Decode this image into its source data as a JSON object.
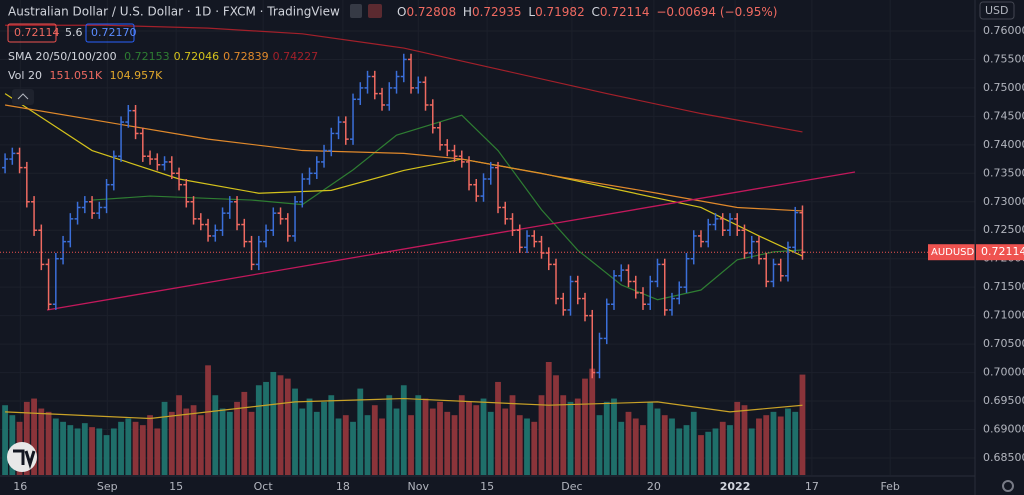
{
  "chart_data": {
    "type": "ohlc",
    "title": "Australian Dollar / U.S. Dollar · 1D · FXCM · TradingView",
    "o_label": "O",
    "h_label": "H",
    "l_label": "L",
    "c_label": "C",
    "change": "−0.00694 (−0.95%)",
    "spread": "5.6",
    "buy": "0.72170",
    "sma_label": "SMA 20/50/100/200",
    "vol_label": "Vol 20",
    "volume_label": "151.051K",
    "volume_ma_label": "104.957K",
    "currency": "USD",
    "symbol": "AUDUSD",
    "up_color": "#3b6fd9",
    "down_color": "#ef6a61",
    "volume_up_color": "#1f6f6a",
    "volume_down_color": "#8a343a",
    "volume_ma_color": "#c9a227",
    "grid": true,
    "xlim": [
      -0.7,
      133.8
    ],
    "ylim": [
      0.68201,
      0.76544
    ],
    "xticks": [
      {
        "value": 2.1,
        "label": "16"
      },
      {
        "value": 14.1,
        "label": "Sep"
      },
      {
        "value": 23.6,
        "label": "15"
      },
      {
        "value": 35.6,
        "label": "Oct"
      },
      {
        "value": 46.6,
        "label": "18"
      },
      {
        "value": 57,
        "label": "Nov"
      },
      {
        "value": 66.5,
        "label": "15"
      },
      {
        "value": 78.2,
        "label": "Dec"
      },
      {
        "value": 89.5,
        "label": "20"
      },
      {
        "value": 100.7,
        "label": "2022"
      },
      {
        "value": 111.3,
        "label": "17"
      },
      {
        "value": 122.1,
        "label": "Feb"
      }
    ],
    "yticks": [
      {
        "value": 0.685,
        "label": "0.68500"
      },
      {
        "value": 0.69,
        "label": "0.69000"
      },
      {
        "value": 0.695,
        "label": "0.69500"
      },
      {
        "value": 0.7,
        "label": "0.70000"
      },
      {
        "value": 0.705,
        "label": "0.70500"
      },
      {
        "value": 0.71,
        "label": "0.71000"
      },
      {
        "value": 0.715,
        "label": "0.71500"
      },
      {
        "value": 0.72,
        "label": "0.72000"
      },
      {
        "value": 0.725,
        "label": "0.72500"
      },
      {
        "value": 0.73,
        "label": "0.73000"
      },
      {
        "value": 0.735,
        "label": "0.73500"
      },
      {
        "value": 0.74,
        "label": "0.74000"
      },
      {
        "value": 0.745,
        "label": "0.74500"
      },
      {
        "value": 0.75,
        "label": "0.75000"
      },
      {
        "value": 0.755,
        "label": "0.75500"
      },
      {
        "value": 0.76,
        "label": "0.76000"
      }
    ],
    "open": [
      0.736,
      0.7375,
      0.7385,
      0.736,
      0.73,
      0.725,
      0.719,
      0.712,
      0.72,
      0.723,
      0.727,
      0.729,
      0.73,
      0.728,
      0.729,
      0.733,
      0.738,
      0.744,
      0.746,
      0.742,
      0.738,
      0.7375,
      0.7365,
      0.737,
      0.735,
      0.733,
      0.73,
      0.727,
      0.726,
      0.724,
      0.725,
      0.728,
      0.73,
      0.726,
      0.723,
      0.719,
      0.723,
      0.725,
      0.728,
      0.727,
      0.724,
      0.73,
      0.734,
      0.735,
      0.737,
      0.739,
      0.742,
      0.744,
      0.741,
      0.748,
      0.75,
      0.752,
      0.749,
      0.747,
      0.75,
      0.752,
      0.755,
      0.75,
      0.751,
      0.747,
      0.743,
      0.74,
      0.739,
      0.738,
      0.737,
      0.733,
      0.731,
      0.734,
      0.736,
      0.729,
      0.727,
      0.725,
      0.722,
      0.724,
      0.723,
      0.721,
      0.719,
      0.713,
      0.711,
      0.716,
      0.713,
      0.71,
      0.7,
      0.706,
      0.712,
      0.717,
      0.718,
      0.716,
      0.714,
      0.712,
      0.716,
      0.719,
      0.711,
      0.713,
      0.715,
      0.72,
      0.724,
      0.723,
      0.726,
      0.727,
      0.725,
      0.727,
      0.725,
      0.721,
      0.723,
      0.72,
      0.716,
      0.719,
      0.717,
      0.722,
      0.72808
    ],
    "high": [
      0.7385,
      0.7395,
      0.7395,
      0.737,
      0.731,
      0.726,
      0.72,
      0.721,
      0.724,
      0.728,
      0.73,
      0.731,
      0.731,
      0.73,
      0.734,
      0.739,
      0.745,
      0.747,
      0.747,
      0.743,
      0.739,
      0.7385,
      0.738,
      0.738,
      0.736,
      0.734,
      0.731,
      0.728,
      0.727,
      0.726,
      0.729,
      0.731,
      0.731,
      0.727,
      0.724,
      0.724,
      0.726,
      0.729,
      0.729,
      0.728,
      0.731,
      0.735,
      0.736,
      0.738,
      0.74,
      0.743,
      0.745,
      0.745,
      0.749,
      0.751,
      0.753,
      0.753,
      0.75,
      0.751,
      0.753,
      0.756,
      0.756,
      0.752,
      0.752,
      0.748,
      0.744,
      0.741,
      0.74,
      0.739,
      0.738,
      0.734,
      0.735,
      0.737,
      0.737,
      0.73,
      0.728,
      0.726,
      0.725,
      0.725,
      0.724,
      0.722,
      0.72,
      0.714,
      0.717,
      0.717,
      0.714,
      0.711,
      0.707,
      0.713,
      0.718,
      0.719,
      0.719,
      0.717,
      0.715,
      0.717,
      0.72,
      0.72,
      0.714,
      0.716,
      0.721,
      0.725,
      0.725,
      0.727,
      0.728,
      0.728,
      0.728,
      0.728,
      0.726,
      0.724,
      0.724,
      0.721,
      0.72,
      0.72,
      0.723,
      0.7291,
      0.72935
    ],
    "low": [
      0.735,
      0.7365,
      0.735,
      0.729,
      0.724,
      0.718,
      0.711,
      0.711,
      0.719,
      0.722,
      0.726,
      0.728,
      0.727,
      0.727,
      0.728,
      0.732,
      0.737,
      0.743,
      0.741,
      0.737,
      0.7365,
      0.7355,
      0.7355,
      0.734,
      0.732,
      0.729,
      0.726,
      0.725,
      0.723,
      0.723,
      0.724,
      0.727,
      0.725,
      0.722,
      0.718,
      0.718,
      0.722,
      0.724,
      0.726,
      0.723,
      0.723,
      0.729,
      0.733,
      0.734,
      0.736,
      0.738,
      0.741,
      0.74,
      0.74,
      0.747,
      0.749,
      0.748,
      0.746,
      0.746,
      0.749,
      0.751,
      0.749,
      0.749,
      0.746,
      0.742,
      0.739,
      0.738,
      0.737,
      0.736,
      0.732,
      0.73,
      0.73,
      0.733,
      0.728,
      0.726,
      0.724,
      0.721,
      0.721,
      0.722,
      0.72,
      0.718,
      0.712,
      0.71,
      0.71,
      0.712,
      0.709,
      0.699,
      0.699,
      0.705,
      0.711,
      0.716,
      0.715,
      0.713,
      0.711,
      0.711,
      0.715,
      0.71,
      0.71,
      0.712,
      0.714,
      0.719,
      0.722,
      0.722,
      0.725,
      0.724,
      0.724,
      0.724,
      0.72,
      0.72,
      0.719,
      0.715,
      0.715,
      0.716,
      0.716,
      0.721,
      0.71982
    ],
    "close": [
      0.7375,
      0.7385,
      0.736,
      0.73,
      0.725,
      0.719,
      0.712,
      0.72,
      0.723,
      0.727,
      0.729,
      0.73,
      0.728,
      0.729,
      0.733,
      0.738,
      0.744,
      0.746,
      0.742,
      0.738,
      0.7375,
      0.7365,
      0.737,
      0.735,
      0.733,
      0.73,
      0.727,
      0.726,
      0.724,
      0.725,
      0.728,
      0.73,
      0.726,
      0.723,
      0.719,
      0.723,
      0.725,
      0.728,
      0.727,
      0.724,
      0.73,
      0.734,
      0.735,
      0.737,
      0.739,
      0.742,
      0.744,
      0.741,
      0.748,
      0.75,
      0.752,
      0.749,
      0.747,
      0.75,
      0.752,
      0.755,
      0.75,
      0.751,
      0.747,
      0.743,
      0.74,
      0.739,
      0.738,
      0.737,
      0.733,
      0.731,
      0.734,
      0.736,
      0.729,
      0.727,
      0.725,
      0.722,
      0.724,
      0.723,
      0.721,
      0.719,
      0.713,
      0.711,
      0.716,
      0.713,
      0.71,
      0.7,
      0.706,
      0.712,
      0.717,
      0.718,
      0.716,
      0.714,
      0.712,
      0.716,
      0.719,
      0.711,
      0.713,
      0.715,
      0.72,
      0.724,
      0.723,
      0.726,
      0.727,
      0.725,
      0.727,
      0.725,
      0.721,
      0.723,
      0.72,
      0.716,
      0.719,
      0.717,
      0.722,
      0.7281,
      0.72114
    ],
    "volume": [
      105000,
      90000,
      80000,
      110000,
      115000,
      100000,
      95000,
      85000,
      80000,
      75000,
      70000,
      78000,
      72000,
      70000,
      60000,
      70000,
      80000,
      85000,
      80000,
      75000,
      90000,
      70000,
      110000,
      95000,
      120000,
      100000,
      105000,
      90000,
      165000,
      120000,
      100000,
      95000,
      110000,
      125000,
      95000,
      135000,
      140000,
      155000,
      150000,
      145000,
      130000,
      100000,
      115000,
      95000,
      110000,
      120000,
      85000,
      90000,
      80000,
      130000,
      90000,
      105000,
      85000,
      120000,
      100000,
      135000,
      90000,
      120000,
      115000,
      100000,
      110000,
      95000,
      90000,
      120000,
      110000,
      105000,
      115000,
      95000,
      140000,
      100000,
      120000,
      90000,
      85000,
      80000,
      120000,
      170000,
      150000,
      120000,
      110000,
      115000,
      145000,
      160000,
      90000,
      110000,
      115000,
      80000,
      95000,
      85000,
      75000,
      110000,
      100000,
      90000,
      85000,
      70000,
      75000,
      95000,
      60000,
      65000,
      70000,
      80000,
      75000,
      110000,
      105000,
      70000,
      85000,
      90000,
      95000,
      88000,
      100000,
      95000,
      151051
    ],
    "volume_ma": {
      "x": [
        0,
        20,
        40,
        55,
        75,
        90,
        100,
        110
      ],
      "values": [
        95000,
        85000,
        110000,
        115000,
        105000,
        110000,
        95000,
        104957
      ]
    },
    "moving_averages": [
      {
        "color": "#2e7d32",
        "x": [
          12,
          20,
          34,
          41,
          48,
          54,
          63,
          68,
          74,
          79,
          85,
          90,
          96,
          101,
          106,
          110
        ],
        "values": [
          0.7303,
          0.731,
          0.7303,
          0.7295,
          0.7356,
          0.7417,
          0.7452,
          0.739,
          0.7286,
          0.7215,
          0.7154,
          0.7128,
          0.7145,
          0.7198,
          0.7212,
          0.72153
        ]
      },
      {
        "color": "#d4c21c",
        "x": [
          0,
          12,
          24,
          35,
          45,
          55,
          63,
          74,
          85,
          96,
          104,
          110
        ],
        "values": [
          0.749,
          0.739,
          0.734,
          0.7315,
          0.732,
          0.7355,
          0.7375,
          0.735,
          0.732,
          0.729,
          0.724,
          0.72046
        ]
      },
      {
        "color": "#e0892b",
        "x": [
          0,
          14,
          28,
          41,
          55,
          63,
          76,
          90,
          101,
          110
        ],
        "values": [
          0.747,
          0.744,
          0.741,
          0.739,
          0.7385,
          0.7375,
          0.7345,
          0.7315,
          0.729,
          0.72839
        ]
      },
      {
        "color": "#a3202a",
        "x": [
          0,
          14,
          28,
          41,
          55,
          69,
          83,
          96,
          110
        ],
        "values": [
          0.761,
          0.761,
          0.7605,
          0.7595,
          0.757,
          0.753,
          0.749,
          0.7455,
          0.74227
        ]
      }
    ]
  }
}
